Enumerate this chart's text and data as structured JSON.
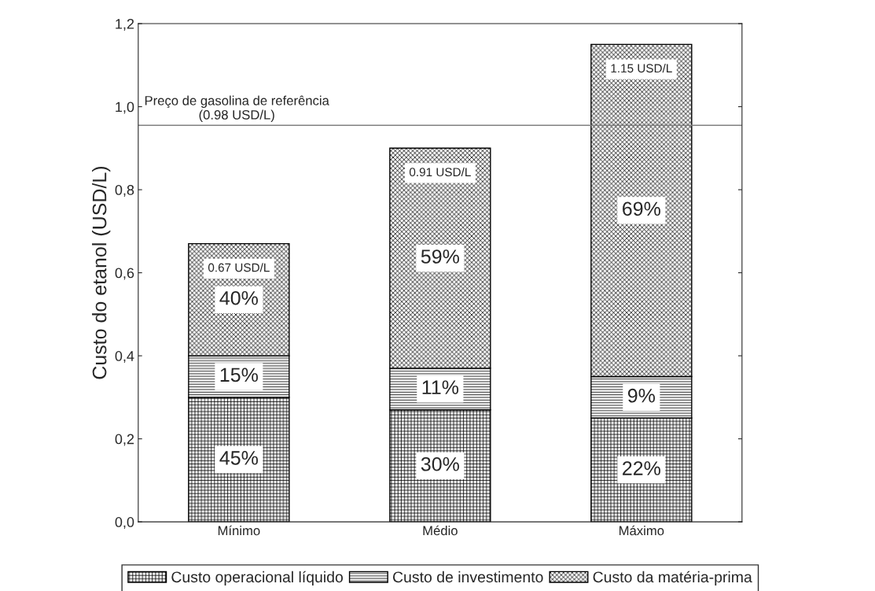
{
  "chart_data": {
    "type": "bar",
    "stacked": true,
    "ylabel": "Custo do etanol (USD/L)",
    "categories": [
      "Mínimo",
      "Médio",
      "Máximo"
    ],
    "series": [
      {
        "name": "Custo operacional líquido",
        "color": "#000000",
        "values": [
          0.3,
          0.27,
          0.25
        ]
      },
      {
        "name": "Custo de investimento",
        "color": "#000000",
        "values": [
          0.1,
          0.1,
          0.1
        ]
      },
      {
        "name": "Custo da matéria-prima",
        "color": "#000000",
        "values": [
          0.27,
          0.53,
          0.8
        ]
      }
    ],
    "totals": [
      "0.67 USD/L",
      "0.91 USD/L",
      "1.15 USD/L"
    ],
    "ylim": [
      0,
      1.2
    ],
    "yticks": [
      {
        "value": 0,
        "label": "0,0"
      },
      {
        "value": 0.2,
        "label": "0,2"
      },
      {
        "value": 0.4,
        "label": "0,4"
      },
      {
        "value": 0.6,
        "label": "0,6"
      },
      {
        "value": 0.8,
        "label": "0,8"
      },
      {
        "value": 1.0,
        "label": "1,0"
      },
      {
        "value": 1.2,
        "label": "1,2"
      }
    ],
    "ref_lines": [
      {
        "axis": "y",
        "value": 0.955,
        "label": "Preço de gasolina de referência\n(0.98 USD/L)",
        "color": "#808080"
      }
    ],
    "annotations": [
      "45%",
      "30%",
      "22%",
      "15%",
      "11%",
      "9%",
      "40%",
      "59%",
      "69%"
    ],
    "legend": "bottom",
    "grid": false
  }
}
